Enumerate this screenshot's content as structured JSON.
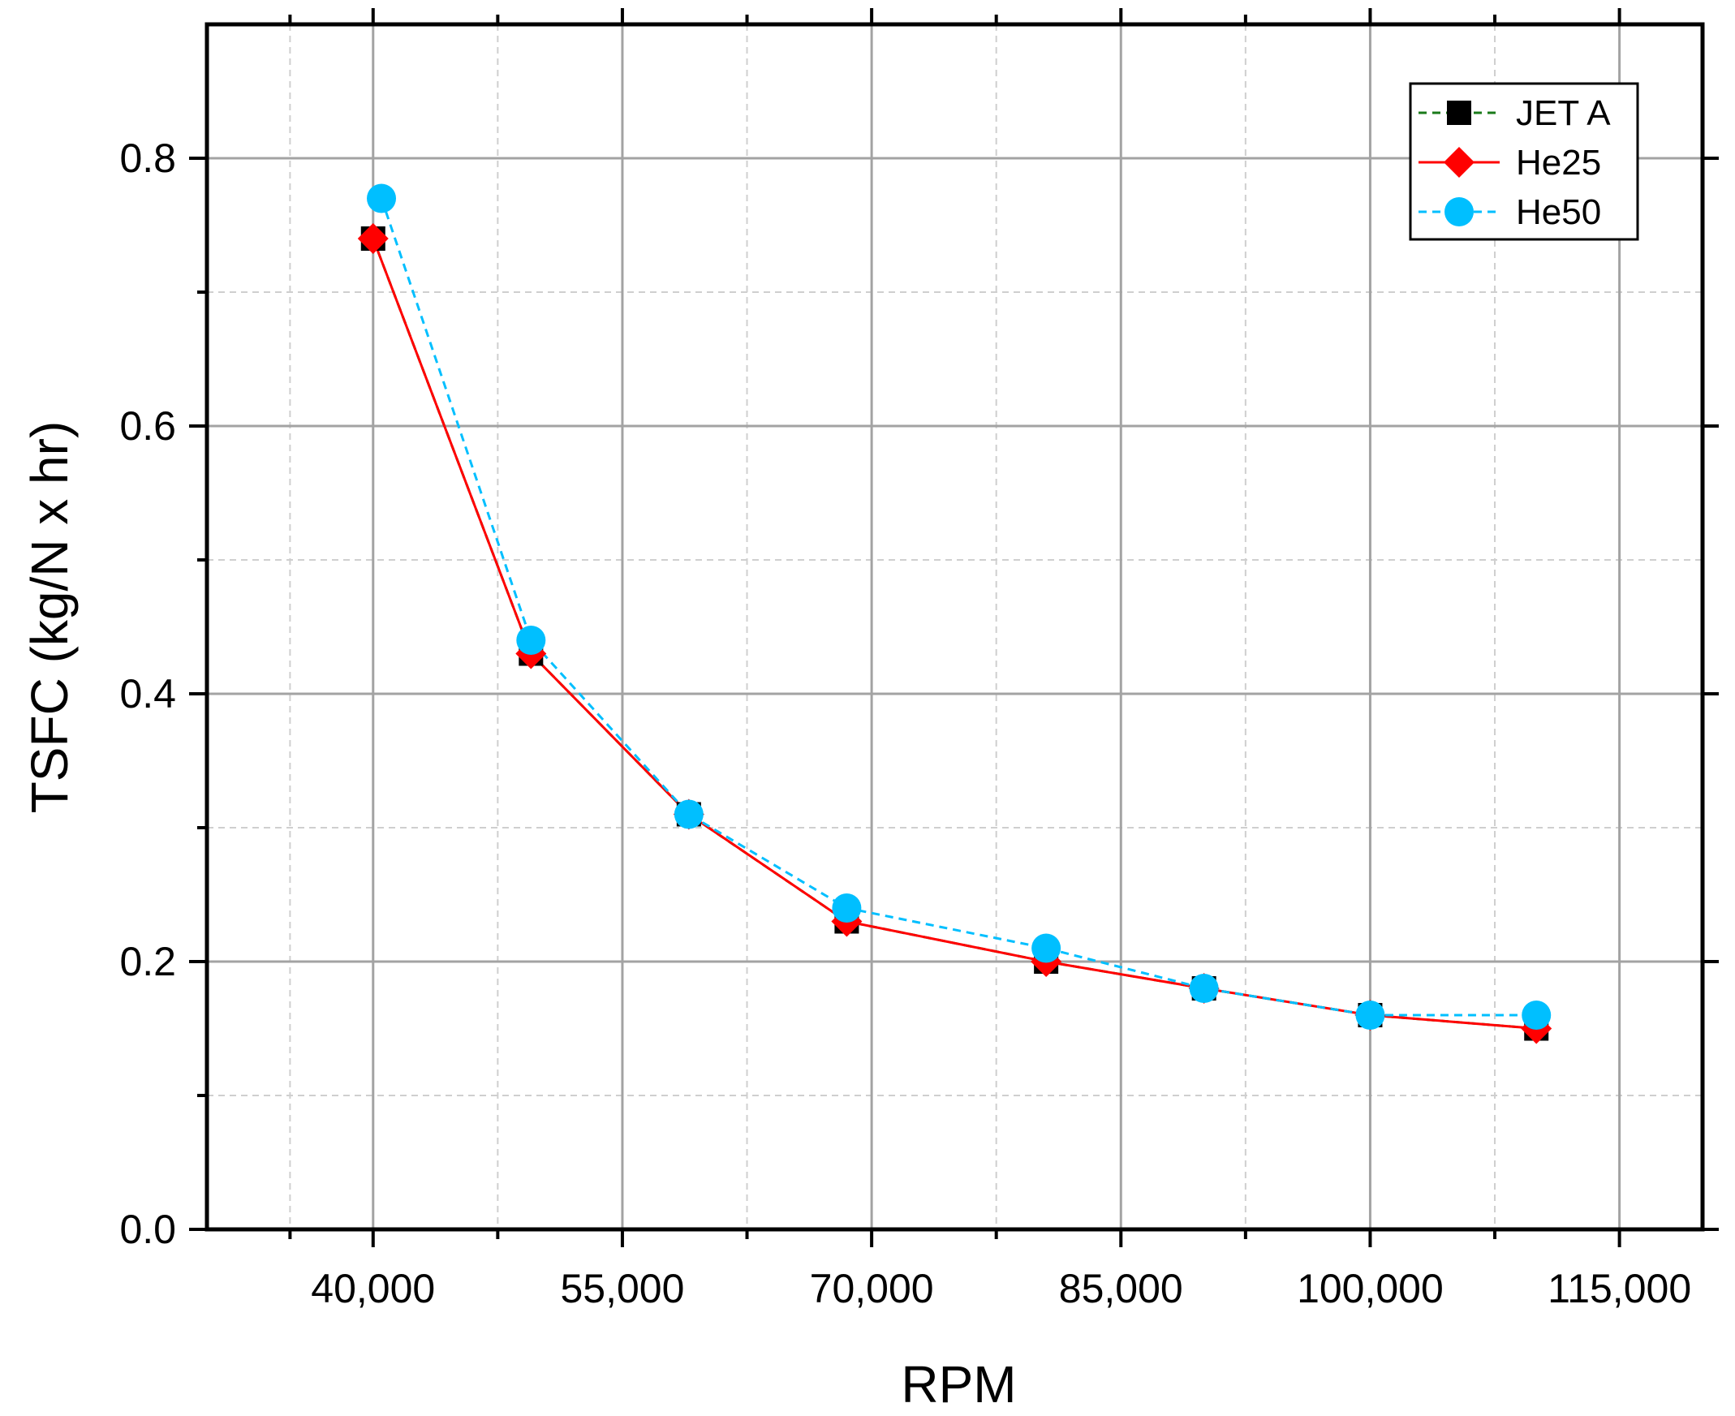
{
  "chart_data": {
    "type": "line",
    "title": "",
    "xlabel": "RPM",
    "ylabel": "TSFC (kg/N x hr)",
    "xlim": [
      30000,
      120000
    ],
    "ylim": [
      0,
      0.9
    ],
    "x_major_ticks": [
      40000,
      55000,
      70000,
      85000,
      100000,
      115000
    ],
    "x_tick_labels": [
      "40,000",
      "55,000",
      "70,000",
      "85,000",
      "100,000",
      "115,000"
    ],
    "x_minor_ticks": [
      35000,
      47500,
      62500,
      77500,
      92500,
      107500
    ],
    "y_major_ticks": [
      0,
      0.2,
      0.4,
      0.6,
      0.8
    ],
    "y_tick_labels": [
      "0.0",
      "0.2",
      "0.4",
      "0.6",
      "0.8"
    ],
    "y_minor_ticks": [
      0.1,
      0.3,
      0.5,
      0.7
    ],
    "grid": true,
    "legend_position": "top-right",
    "series": [
      {
        "name": "JET A",
        "color": "#1a7a1a",
        "marker_color": "#000000",
        "marker": "square",
        "line_style": "dashed",
        "x": [
          40000,
          49500,
          59000,
          68500,
          80500,
          90000,
          100000,
          110000
        ],
        "y": [
          0.74,
          0.43,
          0.31,
          0.23,
          0.2,
          0.18,
          0.16,
          0.15
        ]
      },
      {
        "name": "He25",
        "color": "#ff0000",
        "marker_color": "#ff0000",
        "marker": "diamond",
        "line_style": "solid",
        "x": [
          40000,
          49500,
          59000,
          68500,
          80500,
          90000,
          100000,
          110000
        ],
        "y": [
          0.74,
          0.43,
          0.31,
          0.23,
          0.2,
          0.18,
          0.16,
          0.15
        ]
      },
      {
        "name": "He50",
        "color": "#00bfff",
        "marker_color": "#00bfff",
        "marker": "circle",
        "line_style": "dashed",
        "x": [
          40500,
          49500,
          59000,
          68500,
          80500,
          90000,
          100000,
          110000
        ],
        "y": [
          0.77,
          0.44,
          0.31,
          0.24,
          0.21,
          0.18,
          0.16,
          0.16
        ]
      }
    ]
  }
}
